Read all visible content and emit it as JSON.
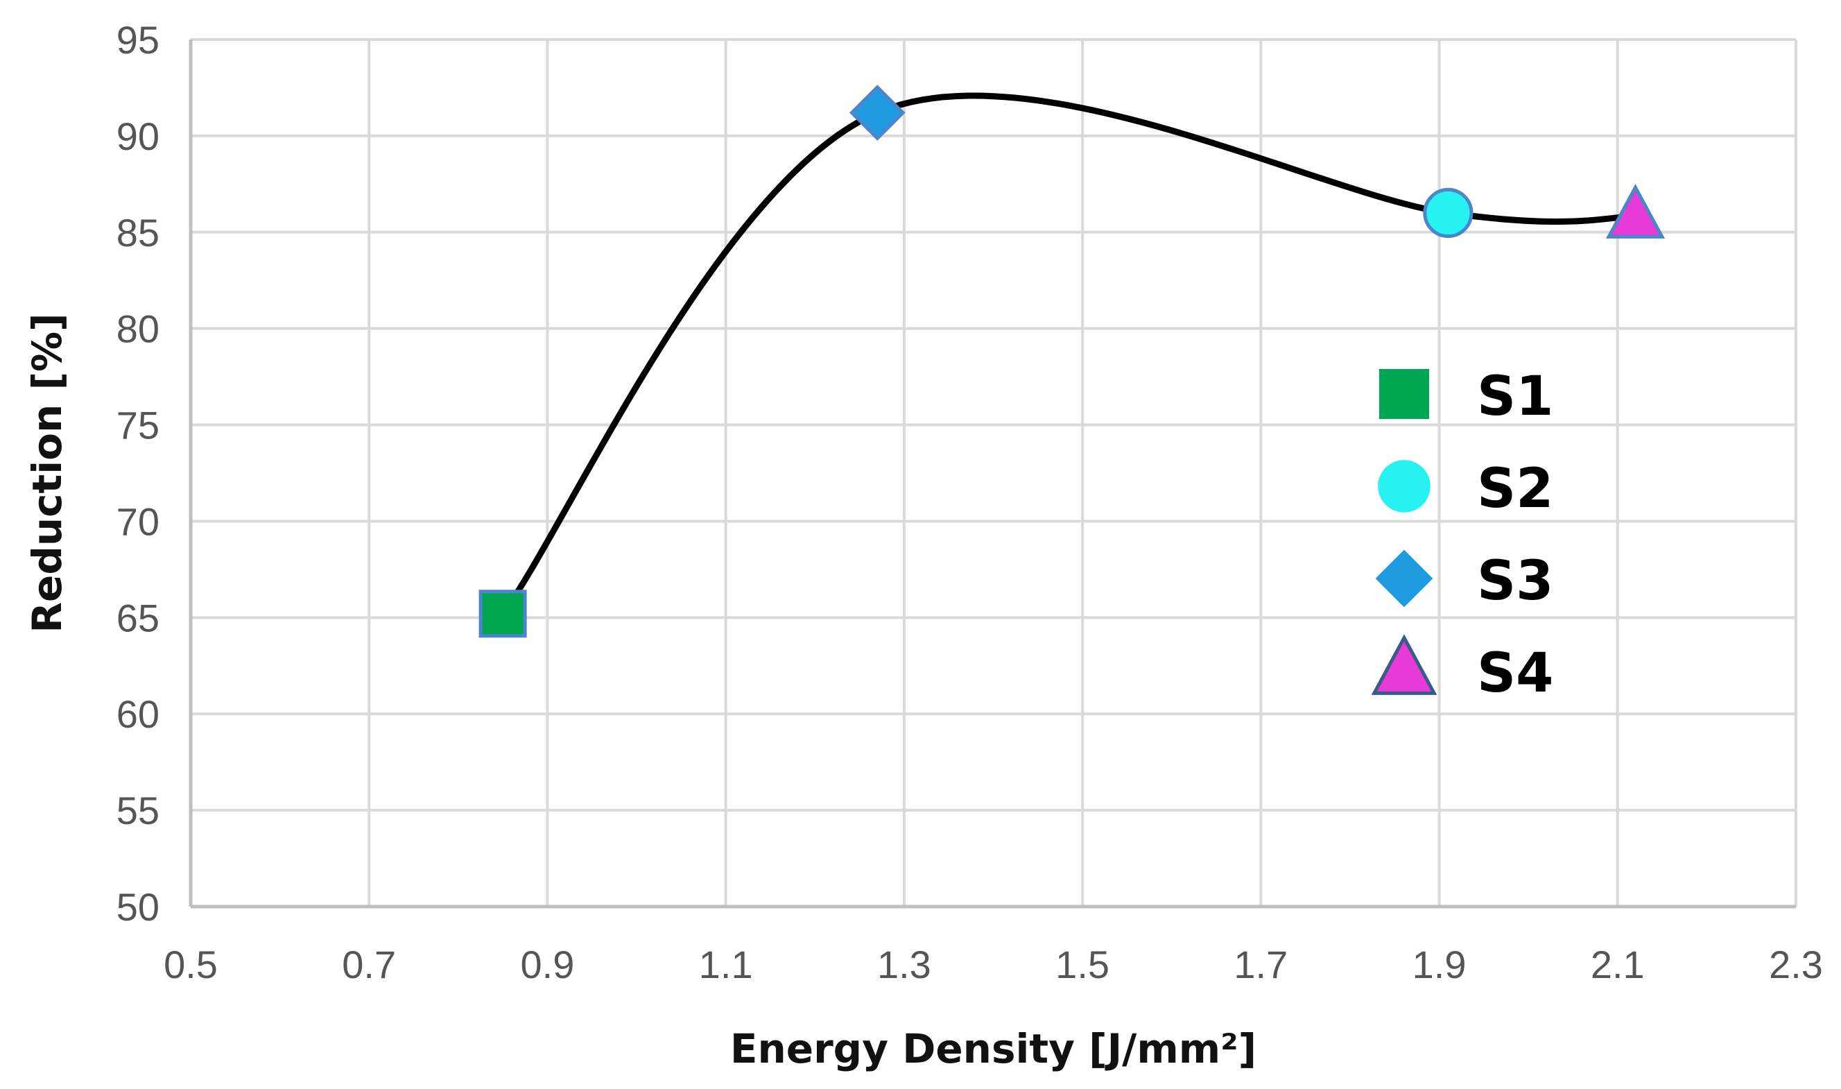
{
  "chart_data": {
    "type": "scatter",
    "title": "",
    "xlabel": "Energy Density [J/mm²]",
    "ylabel": "Reduction [%]",
    "xlim": [
      0.5,
      2.3
    ],
    "ylim": [
      50,
      95
    ],
    "xticks": [
      "0.5",
      "0.7",
      "0.9",
      "1.1",
      "1.3",
      "1.5",
      "1.7",
      "1.9",
      "2.1",
      "2.3"
    ],
    "yticks": [
      "50",
      "55",
      "60",
      "65",
      "70",
      "75",
      "80",
      "85",
      "90",
      "95"
    ],
    "grid": true,
    "smooth_line": true,
    "line_color": "#000000",
    "legend_position": "right",
    "series": [
      {
        "name": "S1",
        "marker": "square",
        "color": "#00a651",
        "x": 0.85,
        "y": 65.2
      },
      {
        "name": "S3",
        "marker": "diamond",
        "color": "#1e9ae0",
        "x": 1.27,
        "y": 91.2
      },
      {
        "name": "S2",
        "marker": "circle",
        "color": "#27f2f2",
        "x": 1.91,
        "y": 86.0
      },
      {
        "name": "S4",
        "marker": "triangle",
        "color": "#e83ad6",
        "x": 2.12,
        "y": 85.8
      }
    ],
    "legend": [
      {
        "name": "S1",
        "marker": "square",
        "color": "#00a651"
      },
      {
        "name": "S2",
        "marker": "circle",
        "color": "#27f2f2"
      },
      {
        "name": "S3",
        "marker": "diamond",
        "color": "#1e9ae0"
      },
      {
        "name": "S4",
        "marker": "triangle",
        "color": "#e83ad6"
      }
    ]
  }
}
